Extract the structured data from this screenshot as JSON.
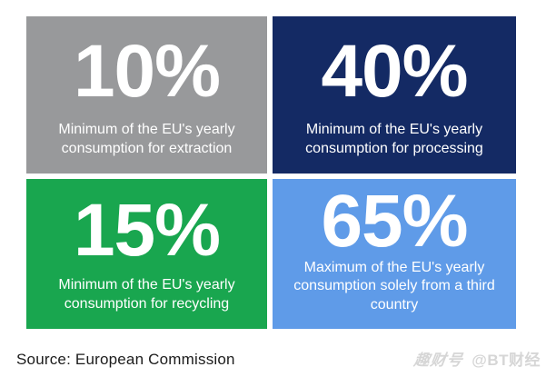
{
  "tiles": [
    {
      "value": "10%",
      "caption": "Minimum of the EU's yearly consumption for extraction",
      "bg": "#98999b"
    },
    {
      "value": "40%",
      "caption": "Minimum of the EU's yearly consumption for processing",
      "bg": "#142a64"
    },
    {
      "value": "15%",
      "caption": "Minimum of the EU's yearly consumption for recycling",
      "bg": "#19a64f"
    },
    {
      "value": "65%",
      "caption": "Maximum of the EU's yearly consumption solely from a third country",
      "bg": "#5f9be8"
    }
  ],
  "source": {
    "label": "Source: European Commission"
  },
  "watermark": {
    "logo": "趣财号",
    "handle": "@BT财经"
  },
  "colors": {
    "background": "#ffffff",
    "tile_text": "#ffffff",
    "gray_tile": "#98999b",
    "navy_tile": "#142a64",
    "green_tile": "#19a64f",
    "blue_tile": "#5f9be8",
    "source_text": "#1c1c1c",
    "watermark_text": "#d6d6d6"
  },
  "chart_data": {
    "type": "table",
    "title": "",
    "categories": [
      "extraction",
      "processing",
      "recycling",
      "solely from a third country"
    ],
    "values": [
      10,
      40,
      15,
      65
    ],
    "units": "%",
    "value_labels": [
      "10%",
      "40%",
      "15%",
      "65%"
    ],
    "descriptions": [
      "Minimum of the EU's yearly consumption for extraction",
      "Minimum of the EU's yearly consumption for processing",
      "Minimum of the EU's yearly consumption for recycling",
      "Maximum of the EU's yearly consumption solely from a third country"
    ],
    "source": "European Commission"
  }
}
